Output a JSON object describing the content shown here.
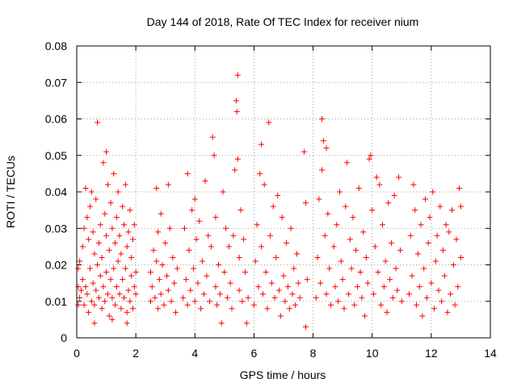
{
  "chart_data": {
    "type": "scatter",
    "title": "Day 144 of 2018, Rate Of TEC Index for receiver nium",
    "xlabel": "GPS time / hours",
    "ylabel": "ROTI / TECUs",
    "xlim": [
      0,
      14
    ],
    "ylim": [
      0,
      0.08
    ],
    "xticks": [
      0,
      2,
      4,
      6,
      8,
      10,
      12,
      14
    ],
    "xtick_labels": [
      "0",
      "2",
      "4",
      "6",
      "8",
      "10",
      "12",
      "14"
    ],
    "yticks": [
      0,
      0.01,
      0.02,
      0.03,
      0.04,
      0.05,
      0.06,
      0.07,
      0.08
    ],
    "ytick_labels": [
      "0",
      "0.01",
      "0.02",
      "0.03",
      "0.04",
      "0.05",
      "0.06",
      "0.07",
      "0.08"
    ],
    "grid": true,
    "marker": "+",
    "color": "#ff0000",
    "series": [
      {
        "name": "ROTI",
        "points": [
          [
            0.05,
            0.009
          ],
          [
            0.05,
            0.014
          ],
          [
            0.05,
            0.019
          ],
          [
            0.1,
            0.011
          ],
          [
            0.1,
            0.021
          ],
          [
            0.15,
            0.013
          ],
          [
            0.2,
            0.016
          ],
          [
            0.2,
            0.025
          ],
          [
            0.25,
            0.009
          ],
          [
            0.25,
            0.03
          ],
          [
            0.3,
            0.014
          ],
          [
            0.3,
            0.041
          ],
          [
            0.35,
            0.012
          ],
          [
            0.35,
            0.033
          ],
          [
            0.4,
            0.007
          ],
          [
            0.4,
            0.027
          ],
          [
            0.45,
            0.019
          ],
          [
            0.45,
            0.036
          ],
          [
            0.5,
            0.01
          ],
          [
            0.5,
            0.04
          ],
          [
            0.55,
            0.015
          ],
          [
            0.55,
            0.029
          ],
          [
            0.6,
            0.009
          ],
          [
            0.6,
            0.023
          ],
          [
            0.65,
            0.013
          ],
          [
            0.65,
            0.038
          ],
          [
            0.7,
            0.059
          ],
          [
            0.7,
            0.02
          ],
          [
            0.75,
            0.011
          ],
          [
            0.75,
            0.026
          ],
          [
            0.8,
            0.017
          ],
          [
            0.8,
            0.031
          ],
          [
            0.85,
            0.008
          ],
          [
            0.85,
            0.022
          ],
          [
            0.9,
            0.014
          ],
          [
            0.9,
            0.048
          ],
          [
            0.95,
            0.01
          ],
          [
            0.95,
            0.034
          ],
          [
            1.0,
            0.051
          ],
          [
            1.0,
            0.018
          ],
          [
            1.0,
            0.028
          ],
          [
            1.05,
            0.012
          ],
          [
            1.05,
            0.042
          ],
          [
            1.1,
            0.006
          ],
          [
            1.1,
            0.024
          ],
          [
            1.15,
            0.016
          ],
          [
            1.15,
            0.037
          ],
          [
            1.2,
            0.011
          ],
          [
            1.2,
            0.03
          ],
          [
            1.25,
            0.019
          ],
          [
            1.25,
            0.045
          ],
          [
            1.3,
            0.009
          ],
          [
            1.3,
            0.026
          ],
          [
            1.35,
            0.014
          ],
          [
            1.35,
            0.033
          ],
          [
            1.4,
            0.021
          ],
          [
            1.4,
            0.04
          ],
          [
            1.45,
            0.012
          ],
          [
            1.45,
            0.028
          ],
          [
            1.5,
            0.008
          ],
          [
            1.5,
            0.023
          ],
          [
            1.55,
            0.016
          ],
          [
            1.55,
            0.036
          ],
          [
            1.6,
            0.011
          ],
          [
            1.6,
            0.031
          ],
          [
            1.65,
            0.019
          ],
          [
            1.65,
            0.042
          ],
          [
            1.7,
            0.007
          ],
          [
            1.7,
            0.025
          ],
          [
            1.75,
            0.013
          ],
          [
            1.75,
            0.029
          ],
          [
            1.8,
            0.01
          ],
          [
            1.8,
            0.035
          ],
          [
            1.85,
            0.017
          ],
          [
            1.85,
            0.022
          ],
          [
            1.9,
            0.008
          ],
          [
            1.9,
            0.027
          ],
          [
            1.95,
            0.014
          ],
          [
            1.95,
            0.031
          ],
          [
            2.0,
            0.012
          ],
          [
            2.0,
            0.018
          ],
          [
            0.6,
            0.004
          ],
          [
            1.2,
            0.005
          ],
          [
            1.7,
            0.004
          ],
          [
            2.5,
            0.01
          ],
          [
            2.5,
            0.018
          ],
          [
            2.55,
            0.014
          ],
          [
            2.6,
            0.024
          ],
          [
            2.65,
            0.011
          ],
          [
            2.7,
            0.041
          ],
          [
            2.7,
            0.021
          ],
          [
            2.75,
            0.008
          ],
          [
            2.75,
            0.029
          ],
          [
            2.8,
            0.016
          ],
          [
            2.85,
            0.034
          ],
          [
            2.85,
            0.012
          ],
          [
            2.9,
            0.02
          ],
          [
            2.95,
            0.009
          ],
          [
            3.0,
            0.026
          ],
          [
            3.05,
            0.017
          ],
          [
            3.1,
            0.042
          ],
          [
            3.1,
            0.013
          ],
          [
            3.15,
            0.03
          ],
          [
            3.2,
            0.01
          ],
          [
            3.25,
            0.022
          ],
          [
            3.3,
            0.015
          ],
          [
            3.35,
            0.007
          ],
          [
            3.4,
            0.019
          ],
          [
            3.6,
            0.011
          ],
          [
            3.65,
            0.03
          ],
          [
            3.7,
            0.016
          ],
          [
            3.75,
            0.045
          ],
          [
            3.75,
            0.009
          ],
          [
            3.8,
            0.024
          ],
          [
            3.85,
            0.013
          ],
          [
            3.9,
            0.035
          ],
          [
            3.95,
            0.019
          ],
          [
            4.0,
            0.01
          ],
          [
            4.0,
            0.038
          ],
          [
            4.05,
            0.027
          ],
          [
            4.1,
            0.015
          ],
          [
            4.15,
            0.032
          ],
          [
            4.2,
            0.008
          ],
          [
            4.25,
            0.021
          ],
          [
            4.3,
            0.012
          ],
          [
            4.35,
            0.043
          ],
          [
            4.4,
            0.017
          ],
          [
            4.45,
            0.028
          ],
          [
            4.5,
            0.01
          ],
          [
            4.55,
            0.025
          ],
          [
            4.6,
            0.055
          ],
          [
            4.65,
            0.05
          ],
          [
            4.7,
            0.014
          ],
          [
            4.7,
            0.033
          ],
          [
            4.75,
            0.009
          ],
          [
            4.8,
            0.02
          ],
          [
            4.85,
            0.012
          ],
          [
            4.9,
            0.004
          ],
          [
            4.95,
            0.04
          ],
          [
            5.0,
            0.018
          ],
          [
            5.05,
            0.03
          ],
          [
            5.1,
            0.011
          ],
          [
            5.15,
            0.025
          ],
          [
            5.2,
            0.015
          ],
          [
            5.25,
            0.008
          ],
          [
            5.3,
            0.028
          ],
          [
            5.35,
            0.046
          ],
          [
            5.4,
            0.065
          ],
          [
            5.42,
            0.062
          ],
          [
            5.45,
            0.072
          ],
          [
            5.45,
            0.049
          ],
          [
            5.5,
            0.022
          ],
          [
            5.5,
            0.013
          ],
          [
            5.55,
            0.035
          ],
          [
            5.6,
            0.01
          ],
          [
            5.65,
            0.027
          ],
          [
            5.7,
            0.018
          ],
          [
            5.75,
            0.004
          ],
          [
            5.8,
            0.011
          ],
          [
            6.0,
            0.009
          ],
          [
            6.05,
            0.021
          ],
          [
            6.1,
            0.031
          ],
          [
            6.15,
            0.014
          ],
          [
            6.2,
            0.045
          ],
          [
            6.25,
            0.053
          ],
          [
            6.25,
            0.025
          ],
          [
            6.3,
            0.012
          ],
          [
            6.35,
            0.042
          ],
          [
            6.4,
            0.018
          ],
          [
            6.45,
            0.008
          ],
          [
            6.5,
            0.059
          ],
          [
            6.55,
            0.028
          ],
          [
            6.6,
            0.015
          ],
          [
            6.65,
            0.036
          ],
          [
            6.7,
            0.011
          ],
          [
            6.75,
            0.022
          ],
          [
            6.8,
            0.039
          ],
          [
            6.85,
            0.013
          ],
          [
            6.9,
            0.006
          ],
          [
            6.95,
            0.033
          ],
          [
            7.0,
            0.017
          ],
          [
            7.05,
            0.01
          ],
          [
            7.1,
            0.026
          ],
          [
            7.15,
            0.014
          ],
          [
            7.2,
            0.008
          ],
          [
            7.25,
            0.03
          ],
          [
            7.3,
            0.012
          ],
          [
            7.35,
            0.019
          ],
          [
            7.4,
            0.009
          ],
          [
            7.45,
            0.023
          ],
          [
            7.5,
            0.015
          ],
          [
            7.55,
            0.011
          ],
          [
            7.7,
            0.051
          ],
          [
            7.75,
            0.037
          ],
          [
            7.75,
            0.003
          ],
          [
            7.8,
            0.016
          ],
          [
            8.1,
            0.011
          ],
          [
            8.15,
            0.022
          ],
          [
            8.2,
            0.038
          ],
          [
            8.25,
            0.015
          ],
          [
            8.3,
            0.06
          ],
          [
            8.3,
            0.046
          ],
          [
            8.35,
            0.054
          ],
          [
            8.4,
            0.028
          ],
          [
            8.45,
            0.052
          ],
          [
            8.45,
            0.012
          ],
          [
            8.5,
            0.034
          ],
          [
            8.55,
            0.019
          ],
          [
            8.6,
            0.009
          ],
          [
            8.7,
            0.025
          ],
          [
            8.75,
            0.014
          ],
          [
            8.8,
            0.031
          ],
          [
            8.85,
            0.01
          ],
          [
            8.9,
            0.04
          ],
          [
            8.95,
            0.021
          ],
          [
            9.0,
            0.016
          ],
          [
            9.05,
            0.008
          ],
          [
            9.1,
            0.036
          ],
          [
            9.15,
            0.048
          ],
          [
            9.2,
            0.012
          ],
          [
            9.25,
            0.027
          ],
          [
            9.3,
            0.019
          ],
          [
            9.35,
            0.033
          ],
          [
            9.4,
            0.009
          ],
          [
            9.45,
            0.024
          ],
          [
            9.5,
            0.014
          ],
          [
            9.55,
            0.041
          ],
          [
            9.6,
            0.018
          ],
          [
            9.65,
            0.011
          ],
          [
            9.7,
            0.029
          ],
          [
            9.75,
            0.006
          ],
          [
            9.8,
            0.022
          ],
          [
            9.85,
            0.015
          ],
          [
            9.9,
            0.049
          ],
          [
            9.95,
            0.05
          ],
          [
            10.0,
            0.035
          ],
          [
            10.05,
            0.012
          ],
          [
            10.1,
            0.025
          ],
          [
            10.15,
            0.044
          ],
          [
            10.2,
            0.018
          ],
          [
            10.25,
            0.042
          ],
          [
            10.3,
            0.009
          ],
          [
            10.35,
            0.031
          ],
          [
            10.4,
            0.014
          ],
          [
            10.45,
            0.021
          ],
          [
            10.5,
            0.007
          ],
          [
            10.55,
            0.037
          ],
          [
            10.6,
            0.016
          ],
          [
            10.65,
            0.026
          ],
          [
            10.7,
            0.011
          ],
          [
            10.75,
            0.039
          ],
          [
            10.8,
            0.019
          ],
          [
            10.85,
            0.013
          ],
          [
            10.9,
            0.044
          ],
          [
            10.95,
            0.024
          ],
          [
            11.0,
            0.01
          ],
          [
            11.25,
            0.012
          ],
          [
            11.3,
            0.028
          ],
          [
            11.35,
            0.017
          ],
          [
            11.4,
            0.042
          ],
          [
            11.45,
            0.035
          ],
          [
            11.5,
            0.009
          ],
          [
            11.55,
            0.023
          ],
          [
            11.6,
            0.014
          ],
          [
            11.65,
            0.031
          ],
          [
            11.7,
            0.006
          ],
          [
            11.75,
            0.019
          ],
          [
            11.8,
            0.038
          ],
          [
            11.85,
            0.011
          ],
          [
            11.9,
            0.026
          ],
          [
            11.95,
            0.033
          ],
          [
            12.0,
            0.015
          ],
          [
            12.05,
            0.04
          ],
          [
            12.1,
            0.008
          ],
          [
            12.15,
            0.021
          ],
          [
            12.2,
            0.028
          ],
          [
            12.25,
            0.013
          ],
          [
            12.3,
            0.036
          ],
          [
            12.35,
            0.01
          ],
          [
            12.4,
            0.024
          ],
          [
            12.45,
            0.017
          ],
          [
            12.5,
            0.031
          ],
          [
            12.55,
            0.007
          ],
          [
            12.6,
            0.029
          ],
          [
            12.65,
            0.012
          ],
          [
            12.7,
            0.035
          ],
          [
            12.75,
            0.02
          ],
          [
            12.8,
            0.009
          ],
          [
            12.85,
            0.027
          ],
          [
            12.9,
            0.014
          ],
          [
            12.95,
            0.041
          ],
          [
            13.0,
            0.022
          ],
          [
            13.0,
            0.036
          ]
        ]
      }
    ]
  }
}
